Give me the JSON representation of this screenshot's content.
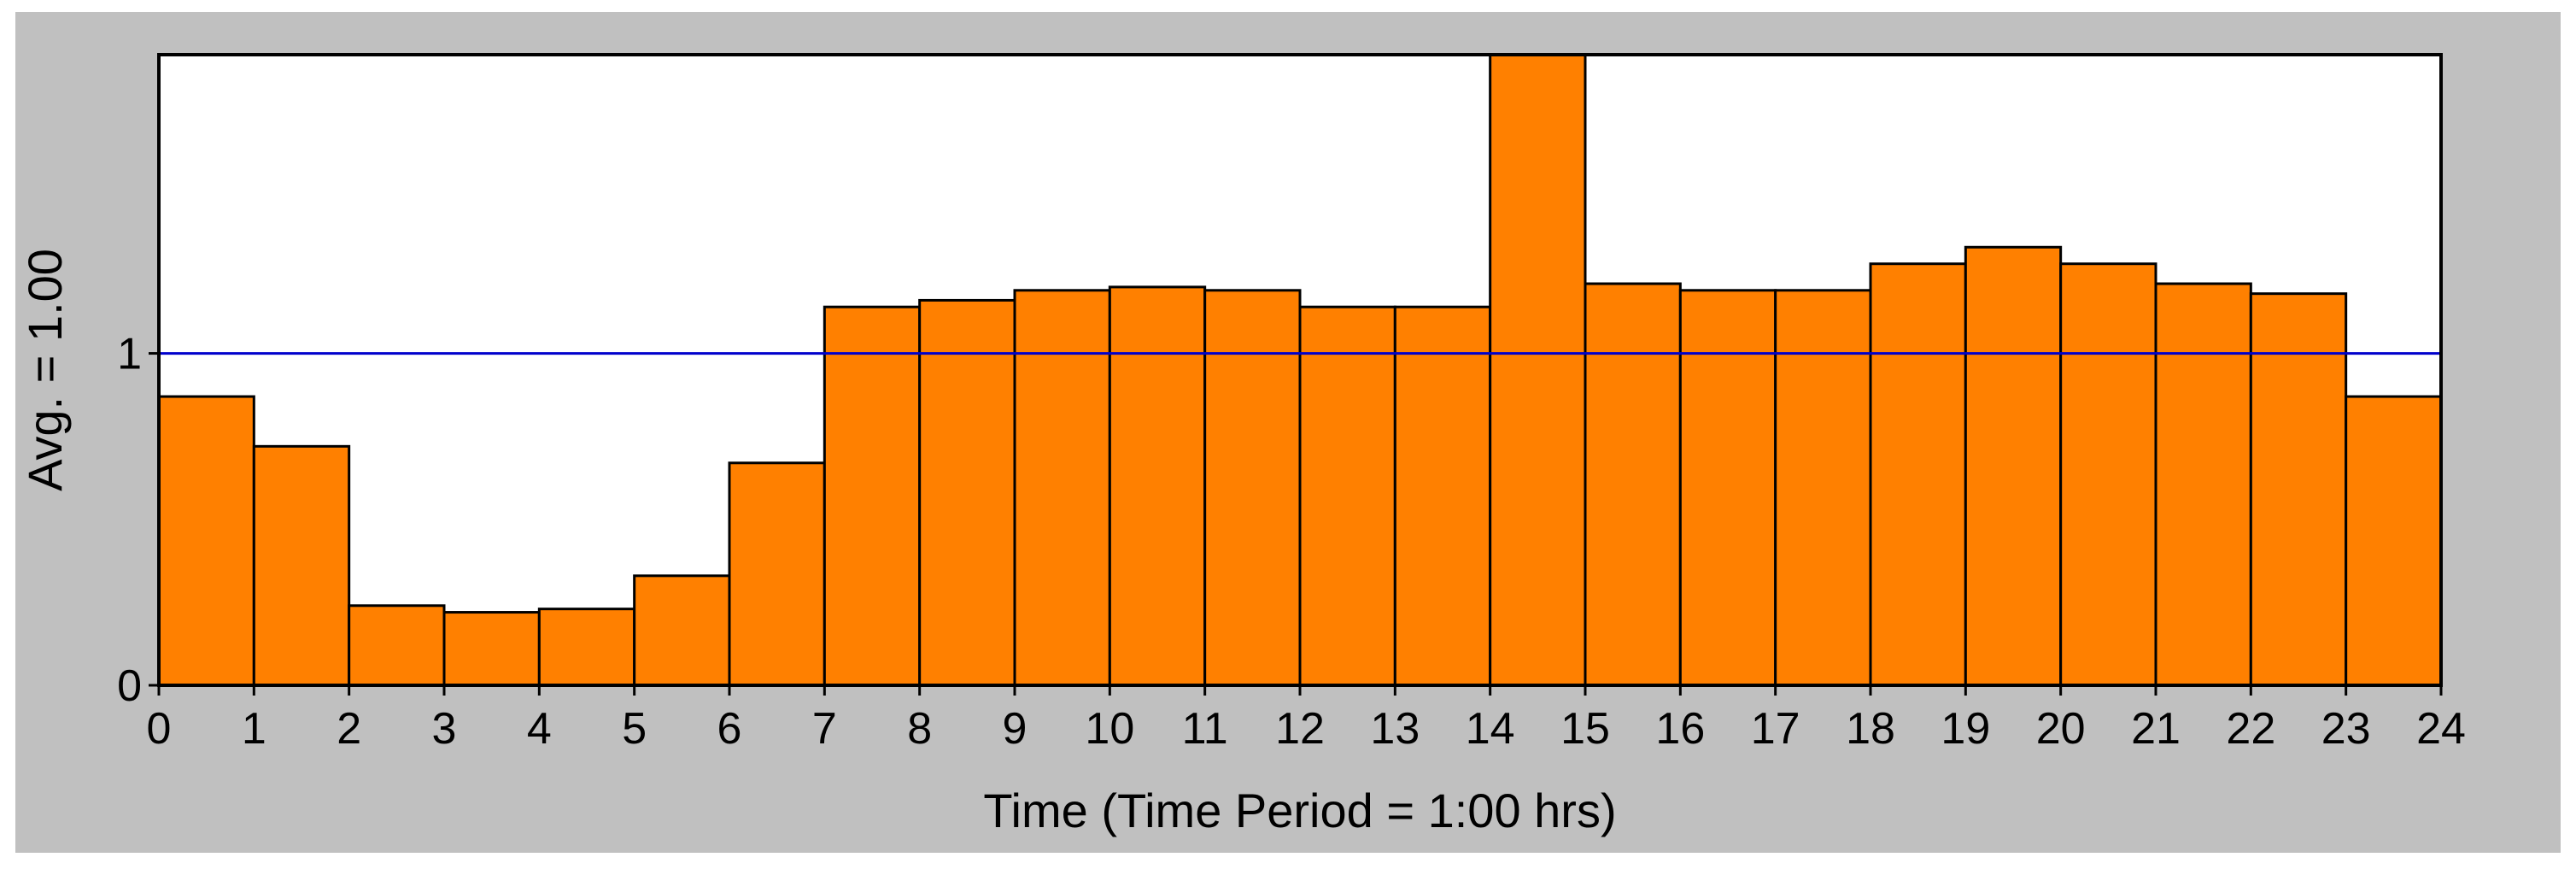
{
  "chart_data": {
    "type": "bar",
    "xlabel": "Time (Time Period = 1:00  hrs)",
    "ylabel": "Avg. = 1.00",
    "x_ticks": [
      "0",
      "1",
      "2",
      "3",
      "4",
      "5",
      "6",
      "7",
      "8",
      "9",
      "10",
      "11",
      "12",
      "13",
      "14",
      "15",
      "16",
      "17",
      "18",
      "19",
      "20",
      "21",
      "22",
      "23",
      "24"
    ],
    "y_ticks": [
      {
        "value": 0,
        "label": "0"
      },
      {
        "value": 1,
        "label": "1"
      }
    ],
    "xlim": [
      0,
      24
    ],
    "ylim": [
      0,
      1.9
    ],
    "bin_width": 1,
    "values": [
      0.87,
      0.72,
      0.24,
      0.22,
      0.23,
      0.33,
      0.67,
      1.14,
      1.16,
      1.19,
      1.2,
      1.19,
      1.14,
      1.14,
      1.9,
      1.21,
      1.19,
      1.19,
      1.27,
      1.32,
      1.27,
      1.21,
      1.18,
      0.87
    ],
    "reference_line": {
      "value": 1.0,
      "color": "#0000cc"
    },
    "grid": false,
    "legend": "none",
    "colors": {
      "bar_fill": "#ff8000",
      "bar_stroke": "#000000",
      "plot_background": "#ffffff",
      "panel_background": "#c0c0c0"
    }
  }
}
